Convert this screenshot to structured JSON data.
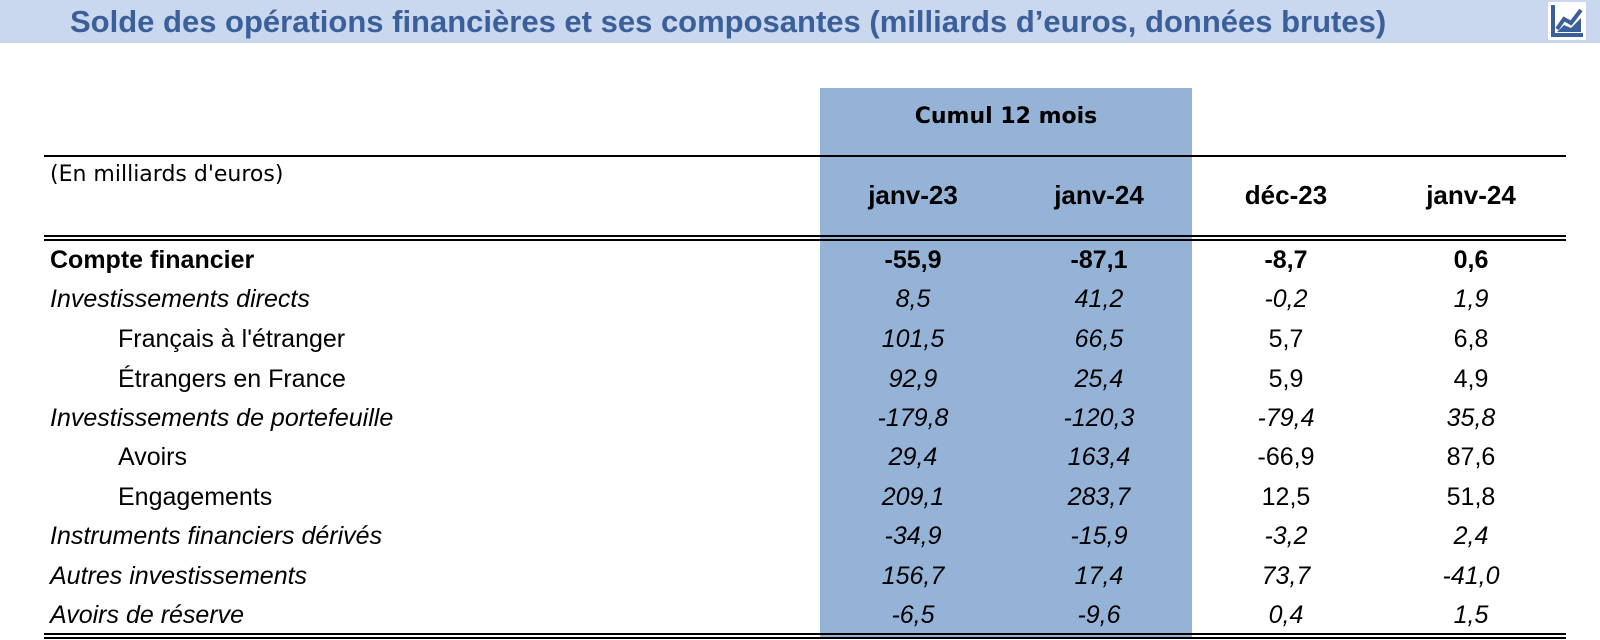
{
  "title": "Solde des opérations financières et ses composantes (milliards d’euros, données brutes)",
  "icon": "chart-icon",
  "colors": {
    "title_bar": "#c9d8ef",
    "title_text": "#3b5f98",
    "highlight": "#95b3d7"
  },
  "table": {
    "unit_label": "(En milliards d'euros)",
    "group_header": "Cumul 12 mois",
    "columns": [
      "janv-23",
      "janv-24",
      "déc-23",
      "janv-24"
    ],
    "rows": [
      {
        "label": "Compte financier",
        "values": [
          "-55,9",
          "-87,1",
          "-8,7",
          "0,6"
        ]
      },
      {
        "label": "Investissements directs",
        "values": [
          "8,5",
          "41,2",
          "-0,2",
          "1,9"
        ]
      },
      {
        "label": "Français à l'étranger",
        "values": [
          "101,5",
          "66,5",
          "5,7",
          "6,8"
        ]
      },
      {
        "label": "Étrangers en France",
        "values": [
          "92,9",
          "25,4",
          "5,9",
          "4,9"
        ]
      },
      {
        "label": "Investissements de portefeuille",
        "values": [
          "-179,8",
          "-120,3",
          "-79,4",
          "35,8"
        ]
      },
      {
        "label": "Avoirs",
        "values": [
          "29,4",
          "163,4",
          "-66,9",
          "87,6"
        ]
      },
      {
        "label": "Engagements",
        "values": [
          "209,1",
          "283,7",
          "12,5",
          "51,8"
        ]
      },
      {
        "label": "Instruments financiers dérivés",
        "values": [
          "-34,9",
          "-15,9",
          "-3,2",
          "2,4"
        ]
      },
      {
        "label": "Autres investissements",
        "values": [
          "156,7",
          "17,4",
          "73,7",
          "-41,0"
        ]
      },
      {
        "label": "Avoirs de réserve",
        "values": [
          "-6,5",
          "-9,6",
          "0,4",
          "1,5"
        ]
      }
    ]
  }
}
